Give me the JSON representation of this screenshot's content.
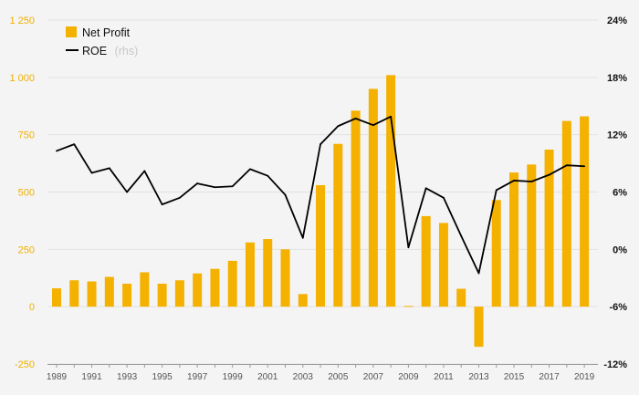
{
  "chart_data": {
    "type": "bar",
    "x": [
      1989,
      1990,
      1991,
      1992,
      1993,
      1994,
      1995,
      1996,
      1997,
      1998,
      1999,
      2000,
      2001,
      2002,
      2003,
      2004,
      2005,
      2006,
      2007,
      2008,
      2009,
      2010,
      2011,
      2012,
      2013,
      2014,
      2015,
      2016,
      2017,
      2018,
      2019
    ],
    "x_tick_labels": [
      "1989",
      "1991",
      "1993",
      "1995",
      "1997",
      "1999",
      "2001",
      "2003",
      "2005",
      "2007",
      "2009",
      "2011",
      "2013",
      "2015",
      "2017",
      "2019"
    ],
    "series": [
      {
        "name": "Net Profit",
        "type": "bar",
        "axis": "left",
        "color": "#f5b100",
        "values": [
          80,
          115,
          110,
          130,
          100,
          150,
          100,
          115,
          145,
          165,
          200,
          280,
          295,
          250,
          55,
          530,
          710,
          855,
          950,
          1010,
          3,
          395,
          365,
          78,
          -175,
          465,
          585,
          620,
          685,
          810,
          830
        ]
      },
      {
        "name": "ROE",
        "name_suffix": "(rhs)",
        "type": "line",
        "axis": "right",
        "color": "#000000",
        "values": [
          10.3,
          11.0,
          8.0,
          8.5,
          6.0,
          8.2,
          4.7,
          5.4,
          6.9,
          6.5,
          6.6,
          8.4,
          7.7,
          5.7,
          1.2,
          11.0,
          12.9,
          13.7,
          13.0,
          13.9,
          0.2,
          6.4,
          5.4,
          1.4,
          -2.5,
          6.2,
          7.2,
          7.1,
          7.8,
          8.8,
          8.7
        ]
      }
    ],
    "y_left": {
      "ylim": [
        -250,
        1250
      ],
      "ticks": [
        -250,
        0,
        250,
        500,
        750,
        1000,
        1250
      ],
      "tick_labels": [
        "-250",
        "0",
        "250",
        "500",
        "750",
        "1 000",
        "1 250"
      ]
    },
    "y_right": {
      "ylim": [
        -12,
        24
      ],
      "ticks": [
        -12,
        -6,
        0,
        6,
        12,
        18,
        24
      ],
      "tick_labels": [
        "-12%",
        "-6%",
        "0%",
        "6%",
        "12%",
        "18%",
        "24%"
      ]
    },
    "grid": true,
    "legend_position": "top-left"
  },
  "colors": {
    "bar": "#f5b100",
    "line": "#000000",
    "grid": "#e2e2e2",
    "background": "#f4f4f4",
    "left_axis_text": "#f0b000"
  }
}
